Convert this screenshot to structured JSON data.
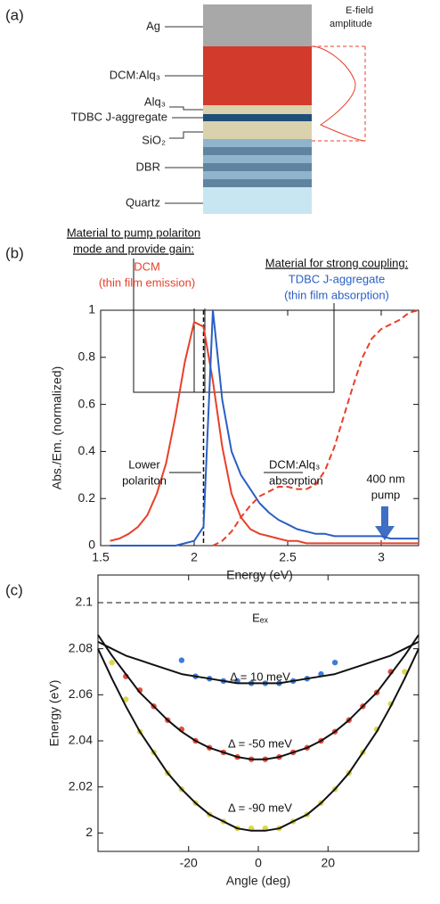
{
  "diagram": {
    "label": "(a)",
    "layers": [
      "Ag",
      "DCM:Alq₃",
      "Alq₃",
      "TDBC J-aggregate",
      "SiO₂",
      "DBR",
      "Quartz"
    ],
    "field_label": [
      "E-field",
      "amplitude"
    ]
  },
  "chart_data": [
    {
      "type": "line",
      "label": "(b)",
      "xlabel": "Energy (eV)",
      "ylabel": "Abs./Em. (normalized)",
      "xlim": [
        1.5,
        3.2
      ],
      "xticks": [
        1.5,
        2,
        2.5,
        3
      ],
      "ylim": [
        0,
        1
      ],
      "yticks": [
        0,
        0.2,
        0.4,
        0.6,
        0.8,
        1
      ],
      "x": [
        1.55,
        1.6,
        1.65,
        1.7,
        1.75,
        1.8,
        1.85,
        1.9,
        1.95,
        2.0,
        2.05,
        2.1,
        2.15,
        2.2,
        2.25,
        2.3,
        2.35,
        2.4,
        2.45,
        2.5,
        2.55,
        2.6,
        2.65,
        2.7,
        2.75,
        2.8,
        2.85,
        2.9,
        2.95,
        3.0,
        3.05,
        3.1,
        3.15,
        3.2
      ],
      "series": [
        {
          "color": "#e8402a",
          "style": "solid",
          "values": [
            0.02,
            0.03,
            0.05,
            0.08,
            0.13,
            0.22,
            0.35,
            0.55,
            0.78,
            0.95,
            0.93,
            0.7,
            0.42,
            0.22,
            0.12,
            0.07,
            0.05,
            0.04,
            0.03,
            0.02,
            0.02,
            0.01,
            0.01,
            0.01,
            0.01,
            0.01,
            0.01,
            0.01,
            0.01,
            0.01,
            0.01,
            0.01,
            0.01,
            0.01
          ]
        },
        {
          "color": "#2a5fc4",
          "style": "solid",
          "values": [
            0,
            0,
            0,
            0,
            0,
            0,
            0,
            0,
            0.01,
            0.02,
            0.08,
            1,
            0.62,
            0.4,
            0.3,
            0.24,
            0.18,
            0.14,
            0.11,
            0.09,
            0.07,
            0.06,
            0.05,
            0.05,
            0.04,
            0.04,
            0.04,
            0.04,
            0.04,
            0.04,
            0.03,
            0.03,
            0.03,
            0.03
          ]
        },
        {
          "color": "#e8402a",
          "style": "dashed",
          "values": [
            null,
            null,
            null,
            null,
            null,
            null,
            null,
            null,
            null,
            null,
            null,
            0,
            0.02,
            0.06,
            0.12,
            0.17,
            0.21,
            0.23,
            0.25,
            0.25,
            0.24,
            0.24,
            0.26,
            0.32,
            0.42,
            0.55,
            0.68,
            0.8,
            0.88,
            0.92,
            0.94,
            0.96,
            0.99,
            1
          ]
        }
      ],
      "reference_lines": [
        {
          "x": 2.05
        }
      ],
      "annotations": [
        "Material to pump polariton",
        "mode and provide gain:",
        "DCM",
        "(thin film emission)",
        "Material for strong coupling:",
        "TDBC J-aggregate",
        "(thin film absorption)",
        "Lower",
        "polariton",
        "DCM:Alq₃",
        "absorption",
        "400 nm",
        "pump"
      ]
    },
    {
      "type": "line",
      "label": "(c)",
      "xlabel": "Angle (deg)",
      "ylabel": "Energy (eV)",
      "xlim": [
        -46,
        46
      ],
      "xticks": [
        -20,
        0,
        20
      ],
      "ylim": [
        1.992,
        2.112
      ],
      "yticks": [
        2,
        2.02,
        2.04,
        2.06,
        2.08,
        2.1
      ],
      "x": [
        -46,
        -42,
        -38,
        -34,
        -30,
        -26,
        -22,
        -18,
        -14,
        -10,
        -6,
        -2,
        2,
        6,
        10,
        14,
        18,
        22,
        26,
        30,
        34,
        38,
        42,
        46
      ],
      "series": [
        {
          "color": "#2a6fd0",
          "style": "markers",
          "values": [
            null,
            null,
            null,
            null,
            null,
            null,
            2.075,
            2.068,
            2.067,
            2.066,
            2.066,
            2.065,
            2.065,
            2.065,
            2.066,
            2.067,
            2.069,
            2.074,
            null,
            null,
            null,
            null,
            null,
            null
          ]
        },
        {
          "color": "#e23a2a",
          "style": "markers",
          "values": [
            null,
            null,
            2.068,
            2.062,
            2.055,
            2.049,
            2.045,
            2.04,
            2.037,
            2.035,
            2.033,
            2.032,
            2.032,
            2.033,
            2.035,
            2.037,
            2.04,
            2.044,
            2.049,
            2.055,
            2.061,
            2.07,
            null,
            null
          ]
        },
        {
          "color": "#d8d23a",
          "style": "markers",
          "values": [
            null,
            2.074,
            2.058,
            2.044,
            2.035,
            2.026,
            2.019,
            2.013,
            2.008,
            2.005,
            2.002,
            2.002,
            2.002,
            2.002,
            2.005,
            2.008,
            2.013,
            2.019,
            2.026,
            2.035,
            2.045,
            2.056,
            2.07,
            null
          ]
        },
        {
          "color": "#111111",
          "style": "solid",
          "values": [
            2.083,
            2.08,
            2.077,
            2.075,
            2.073,
            2.071,
            2.069,
            2.068,
            2.067,
            2.066,
            2.065,
            2.065,
            2.065,
            2.065,
            2.066,
            2.067,
            2.068,
            2.069,
            2.071,
            2.073,
            2.075,
            2.077,
            2.08,
            2.083
          ]
        },
        {
          "color": "#111111",
          "style": "solid",
          "values": [
            2.086,
            2.077,
            2.069,
            2.061,
            2.055,
            2.049,
            2.044,
            2.04,
            2.037,
            2.035,
            2.033,
            2.032,
            2.032,
            2.033,
            2.035,
            2.037,
            2.04,
            2.044,
            2.049,
            2.055,
            2.061,
            2.069,
            2.077,
            2.086
          ]
        },
        {
          "color": "#111111",
          "style": "solid",
          "values": [
            2.08,
            2.067,
            2.055,
            2.044,
            2.035,
            2.026,
            2.019,
            2.013,
            2.008,
            2.005,
            2.002,
            2.001,
            2.001,
            2.002,
            2.005,
            2.008,
            2.013,
            2.019,
            2.026,
            2.035,
            2.044,
            2.055,
            2.067,
            2.08
          ]
        }
      ],
      "reference_lines": [
        {
          "y": 2.1
        }
      ],
      "annotations": [
        "Eₑₓ",
        "Δ = 10 meV",
        "Δ = -50 meV",
        "Δ = -90 meV"
      ]
    }
  ]
}
